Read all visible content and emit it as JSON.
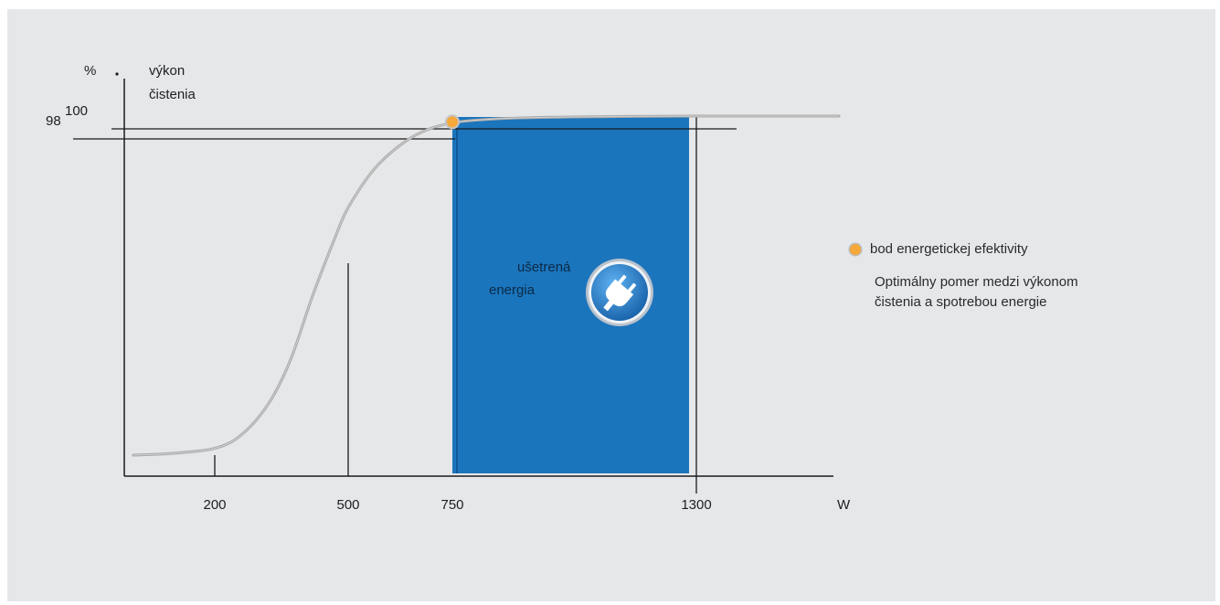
{
  "chart_data": {
    "type": "line",
    "title": "",
    "y_unit": "%",
    "y_axis_title_lines": [
      "výkon",
      "čistenia"
    ],
    "y_marker_labels": [
      "98",
      "100"
    ],
    "x_unit": "W",
    "x_tick_labels": [
      "200",
      "500",
      "750",
      "1300"
    ],
    "curve_points": [
      {
        "x": 50,
        "y": 0
      },
      {
        "x": 120,
        "y": 0.5
      },
      {
        "x": 200,
        "y": 2
      },
      {
        "x": 260,
        "y": 6
      },
      {
        "x": 320,
        "y": 15
      },
      {
        "x": 370,
        "y": 28
      },
      {
        "x": 420,
        "y": 47
      },
      {
        "x": 470,
        "y": 64
      },
      {
        "x": 500,
        "y": 73
      },
      {
        "x": 560,
        "y": 84
      },
      {
        "x": 620,
        "y": 91
      },
      {
        "x": 680,
        "y": 95.5
      },
      {
        "x": 750,
        "y": 98
      },
      {
        "x": 850,
        "y": 99.2
      },
      {
        "x": 1000,
        "y": 99.7
      },
      {
        "x": 1150,
        "y": 99.9
      },
      {
        "x": 1300,
        "y": 100
      },
      {
        "x": 1620,
        "y": 100
      }
    ],
    "efficiency_point": {
      "x": 750,
      "y": 98
    },
    "savings_region": {
      "x_from": 750,
      "x_to": 1300,
      "label_lines": [
        "ušetrená",
        "energia"
      ]
    },
    "legend": {
      "label": "bod energetickej efektivity",
      "description_lines": [
        "Optimálny pomer medzi výkonom",
        "čistenia a spotrebou energie"
      ]
    },
    "colors": {
      "background": "#e6e7e9",
      "savings_fill": "#1b75bc",
      "curve": "#a9a9a9",
      "axis": "#1a1a1a",
      "efficiency_dot": "#f6a83a",
      "icon_ring": "#c9cfd6",
      "icon_fill": "#2a8ad8"
    },
    "icon": "power-plug-icon",
    "grid": false,
    "legend_placement": "right"
  }
}
